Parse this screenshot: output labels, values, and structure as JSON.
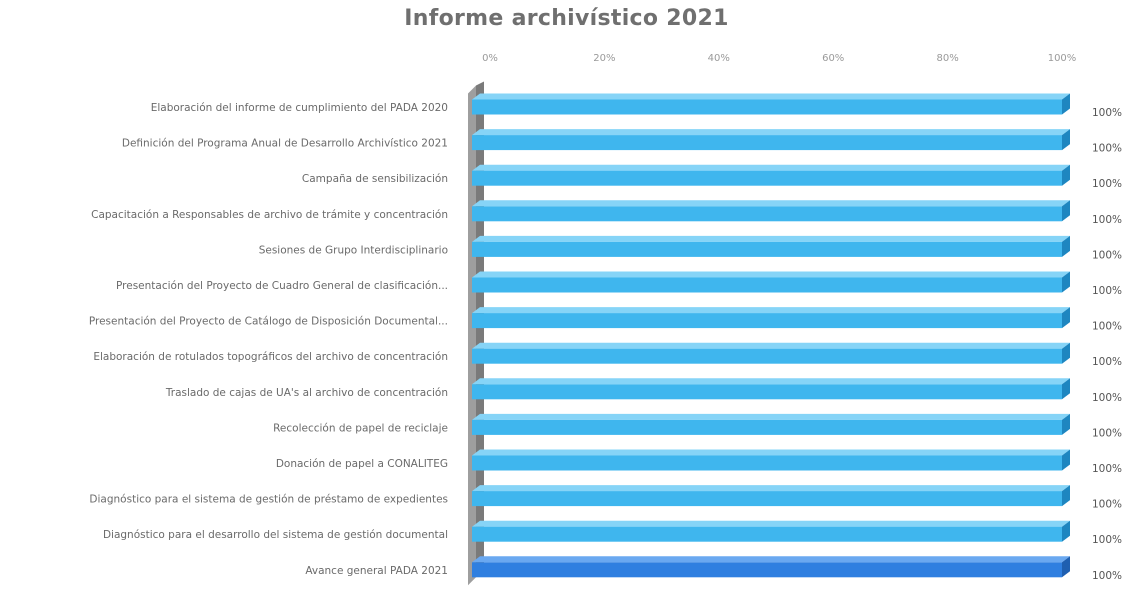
{
  "chart_data": {
    "type": "bar",
    "orientation": "horizontal",
    "style": "3d",
    "title": "Informe archivístico 2021",
    "x_ticks": [
      "0%",
      "20%",
      "40%",
      "60%",
      "80%",
      "100%"
    ],
    "xlim": [
      0,
      100
    ],
    "unit": "%",
    "grid": false,
    "legend": "none",
    "categories": [
      "Elaboración del informe de cumplimiento del PADA 2020",
      "Definición del Programa Anual de Desarrollo Archivístico 2021",
      "Campaña de sensibilización",
      "Capacitación a Responsables de archivo de trámite y concentración",
      "Sesiones de Grupo Interdisciplinario",
      "Presentación del Proyecto de Cuadro General de clasificación...",
      "Presentación del Proyecto de Catálogo de Disposición Documental...",
      "Elaboración de rotulados topográficos del archivo de concentración",
      "Traslado de cajas de UA's al archivo de concentración",
      "Recolección de papel de reciclaje",
      "Donación de papel a CONALITEG",
      "Diagnóstico para el sistema de gestión de préstamo de expedientes",
      "Diagnóstico para el desarrollo del sistema de gestión documental",
      "Avance general PADA 2021"
    ],
    "values": [
      100,
      100,
      100,
      100,
      100,
      100,
      100,
      100,
      100,
      100,
      100,
      100,
      100,
      100
    ],
    "data_labels": [
      "100%",
      "100%",
      "100%",
      "100%",
      "100%",
      "100%",
      "100%",
      "100%",
      "100%",
      "100%",
      "100%",
      "100%",
      "100%",
      "100%"
    ],
    "highlight_index": 13,
    "colors": {
      "bar_front": "#3fb6ee",
      "bar_top": "#86d4f7",
      "bar_side": "#1e86c0",
      "highlight_front": "#2f7fe0",
      "highlight_top": "#6aa8f0",
      "highlight_side": "#1f5fb0",
      "axis_wall": "#9e9e9e",
      "axis_wall_dark": "#7a7a7a"
    }
  }
}
